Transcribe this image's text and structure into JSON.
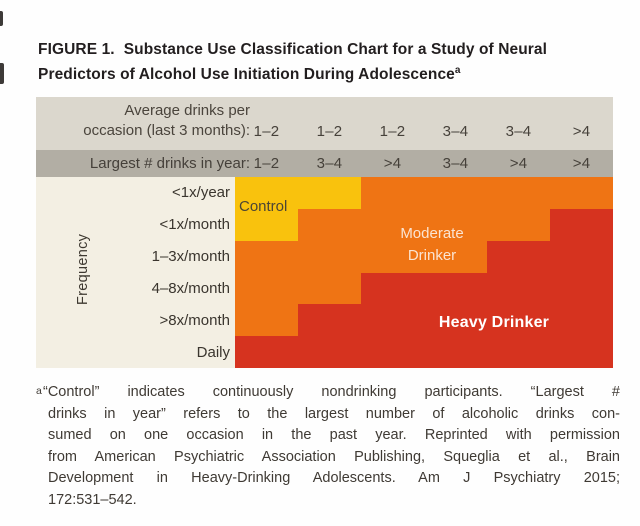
{
  "title": {
    "figure_label": "FIGURE 1.",
    "line1": "Substance Use Classification Chart for a Study of Neural",
    "line2": "Predictors of Alcohol Use Initiation During Adolescence",
    "superscript": "a"
  },
  "table": {
    "header_row1": {
      "label_line1": "Average drinks per",
      "label_line2": "occasion (last 3 months):",
      "values": [
        "1–2",
        "1–2",
        "1–2",
        "3–4",
        "3–4",
        ">4"
      ],
      "background": "#dbd7cd"
    },
    "header_row2": {
      "label": "Largest # drinks in year:",
      "values": [
        "1–2",
        "3–4",
        ">4",
        "3–4",
        ">4",
        ">4"
      ],
      "background": "#b2aea4"
    },
    "frequency_axis": {
      "label": "Frequency",
      "rows": [
        "<1x/year",
        "<1x/month",
        "1–3x/month",
        "4–8x/month",
        ">8x/month",
        "Daily"
      ]
    },
    "grid": {
      "colors": {
        "Y": "#f9c20d",
        "O": "#ef7414",
        "R": "#d6331f"
      },
      "names": {
        "Y": "control",
        "O": "moderate-drinker",
        "R": "heavy-drinker"
      },
      "matrix": [
        [
          "Y",
          "Y",
          "O",
          "O",
          "O",
          "O"
        ],
        [
          "Y",
          "O",
          "O",
          "O",
          "O",
          "R"
        ],
        [
          "O",
          "O",
          "O",
          "O",
          "R",
          "R"
        ],
        [
          "O",
          "O",
          "R",
          "R",
          "R",
          "R"
        ],
        [
          "O",
          "R",
          "R",
          "R",
          "R",
          "R"
        ],
        [
          "R",
          "R",
          "R",
          "R",
          "R",
          "R"
        ]
      ]
    },
    "regions": {
      "control": "Control",
      "moderate_line1": "Moderate",
      "moderate_line2": "Drinker",
      "heavy": "Heavy Drinker"
    }
  },
  "footnote": {
    "marker": "a",
    "lines": [
      "“Control” indicates continuously nondrinking participants. “Largest #",
      "drinks in year” refers to the largest number of alcoholic drinks con-",
      "sumed on one occasion in the past year. Reprinted with permission",
      "from American Psychiatric Association Publishing, Squeglia et al., Brain",
      "Development in Heavy-Drinking Adolescents. Am J Psychiatry 2015;",
      "172:531–542."
    ]
  },
  "chart_data": {
    "type": "heatmap",
    "title": "Substance Use Classification Chart for a Study of Neural Predictors of Alcohol Use Initiation During Adolescence",
    "x_axis": {
      "average_drinks_per_occasion_last_3_months": [
        "1–2",
        "1–2",
        "1–2",
        "3–4",
        "3–4",
        ">4"
      ],
      "largest_num_drinks_in_year": [
        "1–2",
        "3–4",
        ">4",
        "3–4",
        ">4",
        ">4"
      ]
    },
    "y_axis": {
      "label": "Frequency",
      "categories": [
        "<1x/year",
        "<1x/month",
        "1–3x/month",
        "4–8x/month",
        ">8x/month",
        "Daily"
      ]
    },
    "cells": [
      [
        "Control",
        "Control",
        "Moderate Drinker",
        "Moderate Drinker",
        "Moderate Drinker",
        "Moderate Drinker"
      ],
      [
        "Control",
        "Moderate Drinker",
        "Moderate Drinker",
        "Moderate Drinker",
        "Moderate Drinker",
        "Heavy Drinker"
      ],
      [
        "Moderate Drinker",
        "Moderate Drinker",
        "Moderate Drinker",
        "Moderate Drinker",
        "Heavy Drinker",
        "Heavy Drinker"
      ],
      [
        "Moderate Drinker",
        "Moderate Drinker",
        "Heavy Drinker",
        "Heavy Drinker",
        "Heavy Drinker",
        "Heavy Drinker"
      ],
      [
        "Moderate Drinker",
        "Heavy Drinker",
        "Heavy Drinker",
        "Heavy Drinker",
        "Heavy Drinker",
        "Heavy Drinker"
      ],
      [
        "Heavy Drinker",
        "Heavy Drinker",
        "Heavy Drinker",
        "Heavy Drinker",
        "Heavy Drinker",
        "Heavy Drinker"
      ]
    ],
    "legend": [
      {
        "label": "Control",
        "color": "#f9c20d"
      },
      {
        "label": "Moderate Drinker",
        "color": "#ef7414"
      },
      {
        "label": "Heavy Drinker",
        "color": "#d6331f"
      }
    ],
    "grid": "off",
    "legend_position": "labels-inside-regions"
  }
}
